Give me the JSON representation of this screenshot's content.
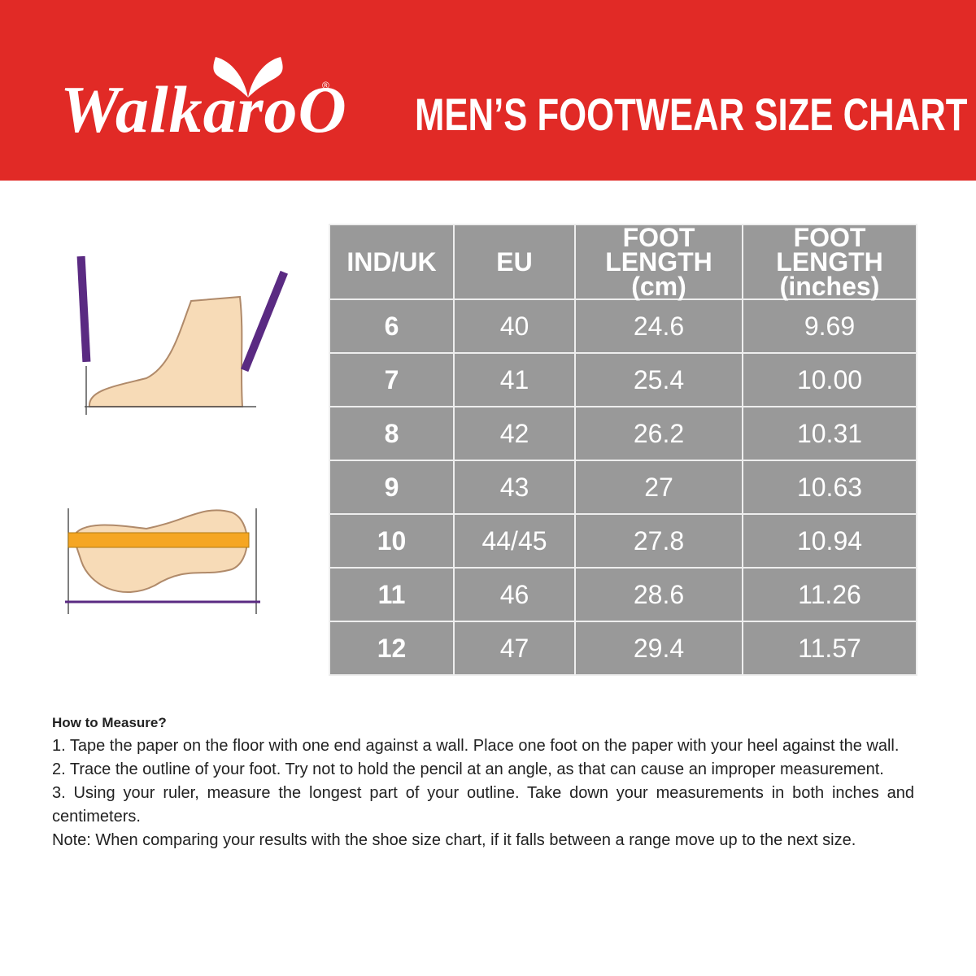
{
  "header": {
    "brand": "WalkaroO",
    "registered": "®",
    "title": "MEN’S FOOTWEAR SIZE CHART"
  },
  "table": {
    "headers": [
      "IND/UK",
      "EU",
      "FOOT LENGTH\n(cm)",
      "FOOT LENGTH\n(inches)"
    ],
    "rows": [
      [
        "6",
        "40",
        "24.6",
        "9.69"
      ],
      [
        "7",
        "41",
        "25.4",
        "10.00"
      ],
      [
        "8",
        "42",
        "26.2",
        "10.31"
      ],
      [
        "9",
        "43",
        "27",
        "10.63"
      ],
      [
        "10",
        "44/45",
        "27.8",
        "10.94"
      ],
      [
        "11",
        "46",
        "28.6",
        "11.26"
      ],
      [
        "12",
        "47",
        "29.4",
        "11.57"
      ]
    ]
  },
  "instructions": {
    "heading": "How to Measure?",
    "steps": [
      "1. Tape the paper on the floor with one end against a wall. Place one foot on the paper with your heel against the wall.",
      "2. Trace the outline of your foot. Try not to hold the pencil at an angle, as that can cause an improper measurement.",
      "3. Using your ruler, measure the longest part of your outline. Take down your measurements in both inches and centimeters.",
      "Note: When comparing your results with the shoe size chart, if it falls between a range move up to the next size."
    ]
  }
}
